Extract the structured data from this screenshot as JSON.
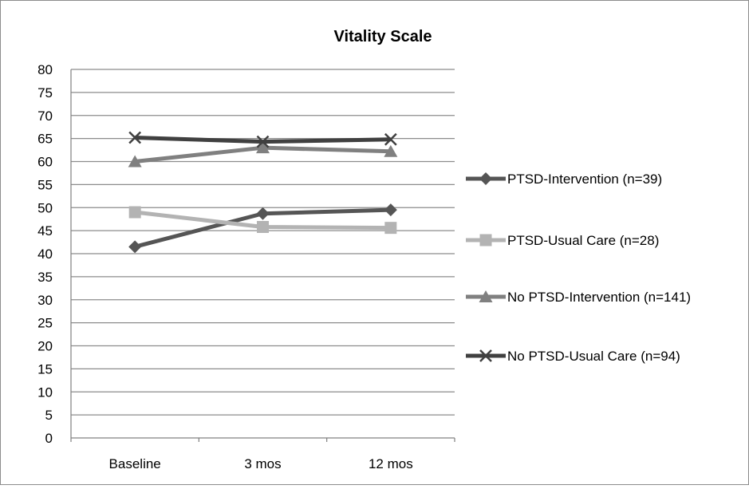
{
  "chart_data": {
    "type": "line",
    "title": "Vitality Scale",
    "xlabel": "",
    "ylabel": "",
    "categories": [
      "Baseline",
      "3 mos",
      "12 mos"
    ],
    "ylim": [
      0,
      80
    ],
    "yticks": [
      0,
      5,
      10,
      15,
      20,
      25,
      30,
      35,
      40,
      45,
      50,
      55,
      60,
      65,
      70,
      75,
      80
    ],
    "grid": true,
    "legend_position": "right",
    "series": [
      {
        "name": "PTSD-Intervention (n=39)",
        "values": [
          41.5,
          48.7,
          49.5
        ],
        "marker": "diamond",
        "color": "#555555"
      },
      {
        "name": "PTSD-Usual Care (n=28)",
        "values": [
          49.0,
          45.8,
          45.6
        ],
        "marker": "square",
        "color": "#b3b3b3"
      },
      {
        "name": "No PTSD-Intervention (n=141)",
        "values": [
          60.0,
          63.0,
          62.2
        ],
        "marker": "triangle",
        "color": "#808080"
      },
      {
        "name": "No PTSD-Usual Care (n=94)",
        "values": [
          65.2,
          64.3,
          64.8
        ],
        "marker": "x",
        "color": "#404040"
      }
    ]
  }
}
